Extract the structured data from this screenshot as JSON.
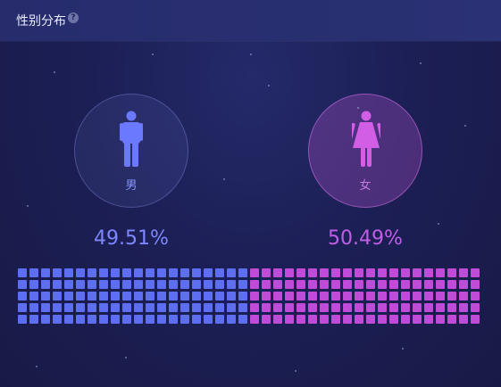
{
  "header": {
    "title": "性别分布",
    "help_glyph": "?"
  },
  "chart_data": {
    "type": "waffle",
    "title": "性别分布",
    "series": [
      {
        "name": "男",
        "value": 49.51,
        "display": "49.51%",
        "color": "#5d6ef0",
        "icon": "male-figure-icon"
      },
      {
        "name": "女",
        "value": 50.49,
        "display": "50.49%",
        "color": "#c04bd8",
        "icon": "female-figure-icon"
      }
    ],
    "grid": {
      "rows": 5,
      "cols": 40,
      "male_cols": 20
    }
  }
}
